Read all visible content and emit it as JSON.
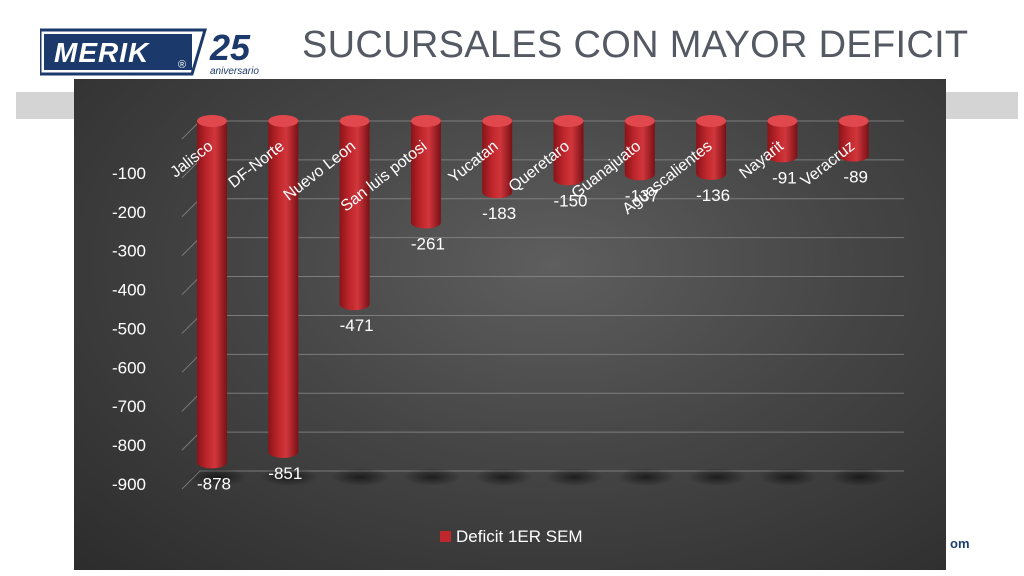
{
  "header": {
    "logo_brand": "MERIK",
    "logo_registered": "®",
    "logo_anniversary_number": "25",
    "logo_anniversary_word": "aniversario",
    "title": "SUCURSALES CON MAYOR DEFICIT"
  },
  "footer": {
    "partial_text": "om"
  },
  "colors": {
    "bar": "#c0272d",
    "bar_top": "#e35055",
    "chart_bg": "#454545",
    "band": "#d4d4d4",
    "title": "#555963",
    "logo_blue": "#1b3a6b"
  },
  "chart_data": {
    "type": "bar",
    "title": "",
    "xlabel": "",
    "ylabel": "",
    "categories": [
      "Jalisco",
      "DF-Norte",
      "Nuevo Leon",
      "San luis potosi",
      "Yucatan",
      "Queretaro",
      "Guanajuato",
      "Aguascalientes",
      "Nayarit",
      "Veracruz"
    ],
    "series": [
      {
        "name": "Deficit 1ER SEM",
        "values": [
          -878,
          -851,
          -471,
          -261,
          -183,
          -150,
          -137,
          -136,
          -91,
          -89
        ]
      }
    ],
    "data_labels": [
      "-878",
      "-851",
      "-471",
      "-261",
      "-183",
      "-150",
      "-137",
      "-136",
      "-91",
      "-89"
    ],
    "y_ticks": [
      -100,
      -200,
      -300,
      -400,
      -500,
      -600,
      -700,
      -800,
      -900
    ],
    "y_tick_labels": [
      "-100",
      "-200",
      "-300",
      "-400",
      "-500",
      "-600",
      "-700",
      "-800",
      "-900"
    ],
    "ylim": [
      -900,
      0
    ],
    "grid": true,
    "legend": "bottom",
    "shape": "3d-cylinder"
  }
}
